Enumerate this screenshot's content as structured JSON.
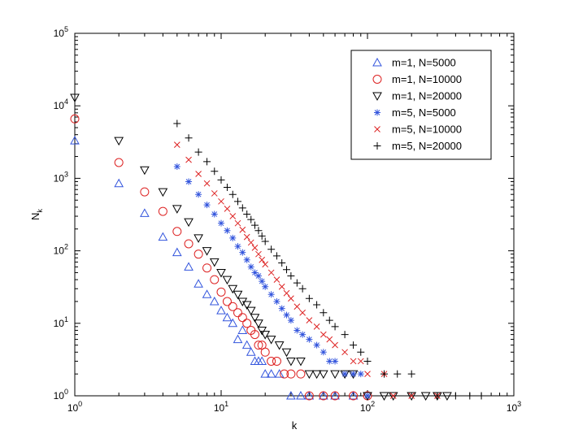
{
  "chart_data": {
    "type": "scatter",
    "title": "",
    "xlabel": "k",
    "ylabel_main": "N",
    "ylabel_sub": "k",
    "xscale": "log",
    "yscale": "log",
    "xlim": [
      1,
      1000
    ],
    "ylim": [
      1,
      100000
    ],
    "grid": false,
    "legend_position": "top-right",
    "x_ticks": [
      {
        "value": 1,
        "base": "10",
        "exp": "0"
      },
      {
        "value": 10,
        "base": "10",
        "exp": "1"
      },
      {
        "value": 100,
        "base": "10",
        "exp": "2"
      },
      {
        "value": 1000,
        "base": "10",
        "exp": "3"
      }
    ],
    "y_ticks": [
      {
        "value": 1,
        "base": "10",
        "exp": "0"
      },
      {
        "value": 10,
        "base": "10",
        "exp": "1"
      },
      {
        "value": 100,
        "base": "10",
        "exp": "2"
      },
      {
        "value": 1000,
        "base": "10",
        "exp": "3"
      },
      {
        "value": 10000,
        "base": "10",
        "exp": "4"
      },
      {
        "value": 100000,
        "base": "10",
        "exp": "5"
      }
    ],
    "series": [
      {
        "name": "m=1, N=5000",
        "marker": "triangle-up",
        "color": "#3355dd",
        "x": [
          1,
          2,
          3,
          4,
          5,
          6,
          7,
          8,
          9,
          10,
          11,
          12,
          13,
          14,
          15,
          16,
          17,
          18,
          19,
          20,
          22,
          25,
          30,
          35,
          40,
          50,
          60,
          80
        ],
        "y": [
          3300,
          850,
          330,
          155,
          95,
          60,
          35,
          25,
          20,
          15,
          12,
          10,
          6,
          8,
          5,
          4,
          3,
          3,
          3,
          2,
          2,
          2,
          1,
          1,
          1,
          1,
          1,
          1
        ]
      },
      {
        "name": "m=1, N=10000",
        "marker": "circle",
        "color": "#dd2222",
        "x": [
          1,
          2,
          3,
          4,
          5,
          6,
          7,
          8,
          9,
          10,
          11,
          12,
          13,
          14,
          15,
          16,
          17,
          18,
          19,
          20,
          22,
          24,
          27,
          30,
          35,
          40,
          50,
          60,
          80,
          100
        ],
        "y": [
          6600,
          1650,
          650,
          350,
          185,
          125,
          90,
          58,
          40,
          27,
          20,
          17,
          14,
          12,
          10,
          8,
          7,
          5,
          5,
          4,
          3,
          3,
          2,
          2,
          2,
          1,
          1,
          1,
          1,
          1
        ]
      },
      {
        "name": "m=1, N=20000",
        "marker": "triangle-down",
        "color": "#000000",
        "x": [
          1,
          2,
          3,
          4,
          5,
          6,
          7,
          8,
          9,
          10,
          11,
          12,
          13,
          14,
          15,
          16,
          17,
          18,
          19,
          20,
          22,
          25,
          28,
          30,
          35,
          40,
          45,
          50,
          60,
          70,
          80,
          100,
          130,
          150,
          200,
          250,
          300,
          350
        ],
        "y": [
          13000,
          3300,
          1300,
          650,
          380,
          250,
          150,
          100,
          70,
          50,
          40,
          30,
          25,
          20,
          18,
          15,
          12,
          10,
          8,
          7,
          6,
          5,
          4,
          3,
          3,
          2,
          2,
          2,
          2,
          2,
          2,
          1,
          1,
          1,
          1,
          1,
          1,
          1
        ]
      },
      {
        "name": "m=5, N=5000",
        "marker": "asterisk",
        "color": "#3355dd",
        "x": [
          5,
          6,
          7,
          8,
          9,
          10,
          11,
          12,
          13,
          14,
          15,
          16,
          17,
          18,
          19,
          20,
          22,
          24,
          26,
          28,
          30,
          33,
          36,
          40,
          45,
          50,
          55,
          60,
          70,
          80,
          90,
          100
        ],
        "y": [
          1450,
          900,
          600,
          430,
          320,
          240,
          190,
          150,
          115,
          95,
          75,
          60,
          50,
          45,
          38,
          32,
          25,
          20,
          16,
          13,
          11,
          8,
          7,
          6,
          5,
          4,
          3,
          3,
          2,
          2,
          2,
          1
        ]
      },
      {
        "name": "m=5, N=10000",
        "marker": "x",
        "color": "#dd2222",
        "x": [
          5,
          6,
          7,
          8,
          9,
          10,
          11,
          12,
          13,
          14,
          15,
          16,
          17,
          18,
          19,
          20,
          22,
          24,
          26,
          28,
          30,
          33,
          36,
          40,
          45,
          50,
          55,
          60,
          70,
          80,
          90,
          100,
          130,
          150,
          200,
          300
        ],
        "y": [
          2900,
          1800,
          1150,
          850,
          620,
          480,
          380,
          300,
          240,
          195,
          155,
          130,
          110,
          90,
          75,
          65,
          50,
          40,
          32,
          26,
          22,
          17,
          14,
          11,
          9,
          7,
          6,
          5,
          4,
          3,
          3,
          2,
          2,
          1,
          1,
          1
        ]
      },
      {
        "name": "m=5, N=20000",
        "marker": "plus",
        "color": "#000000",
        "x": [
          5,
          6,
          7,
          8,
          9,
          10,
          11,
          12,
          13,
          14,
          15,
          16,
          17,
          18,
          19,
          20,
          22,
          24,
          26,
          28,
          30,
          33,
          36,
          40,
          45,
          50,
          55,
          60,
          70,
          80,
          90,
          100,
          130,
          160,
          200,
          300,
          400,
          500,
          600
        ],
        "y": [
          5700,
          3600,
          2300,
          1700,
          1250,
          950,
          750,
          600,
          480,
          390,
          320,
          270,
          225,
          190,
          160,
          135,
          105,
          85,
          68,
          55,
          45,
          36,
          30,
          22,
          18,
          14,
          11,
          9,
          7,
          5,
          4,
          3,
          2,
          2,
          2,
          1,
          1,
          1,
          1
        ]
      }
    ]
  }
}
